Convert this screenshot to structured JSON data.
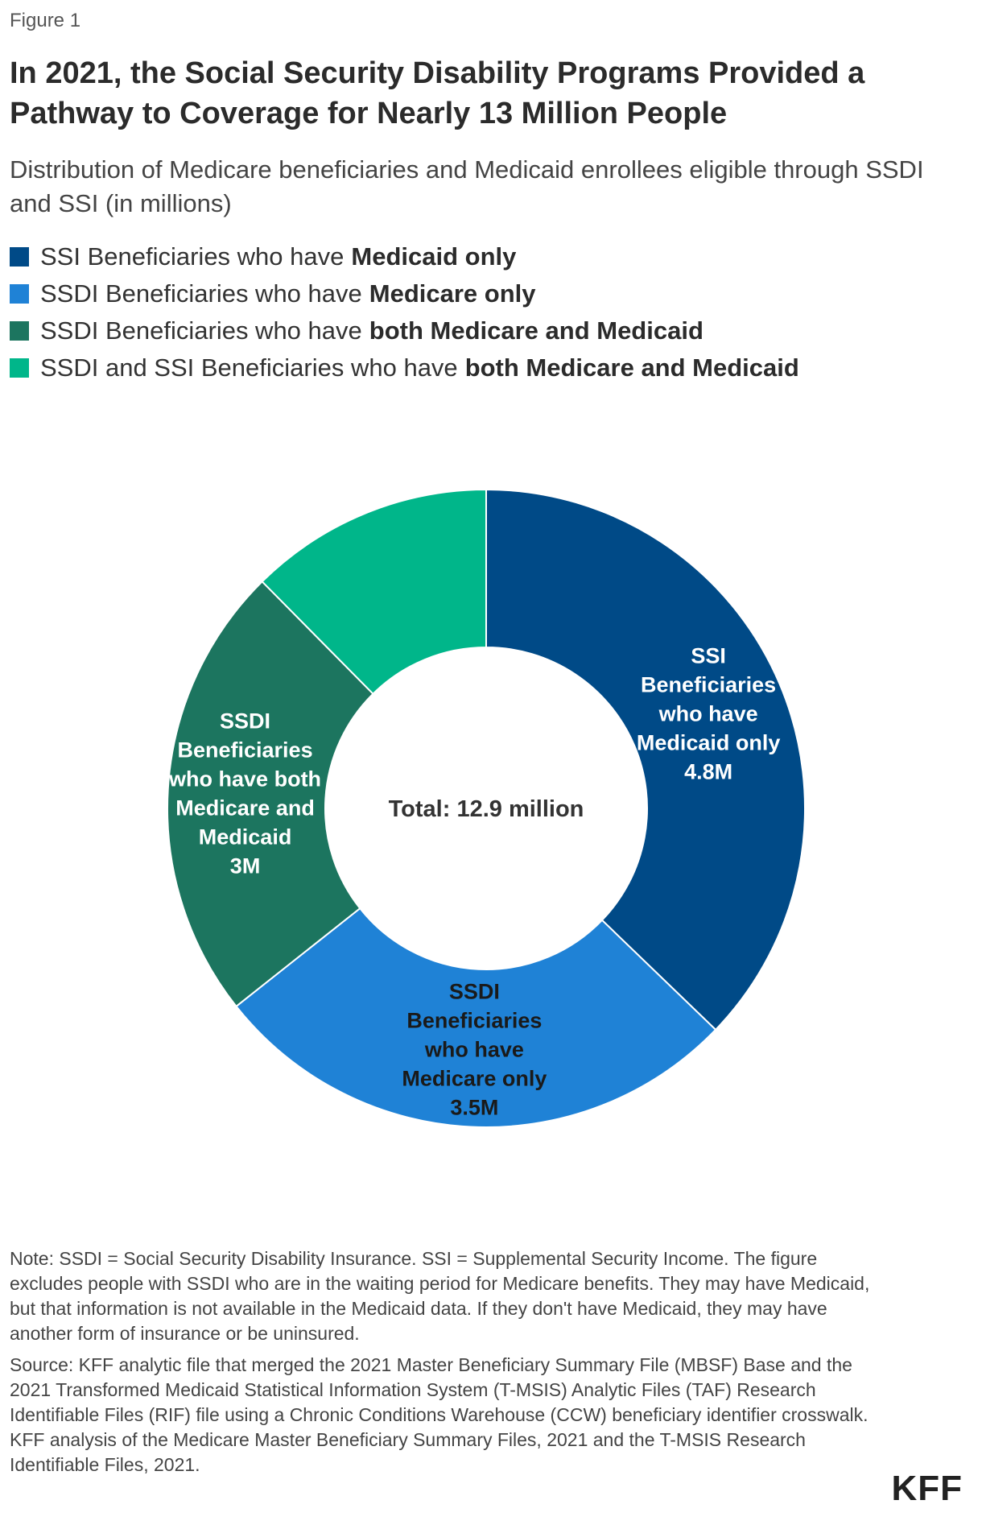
{
  "figure_label": "Figure 1",
  "title": "In 2021, the Social Security Disability Programs Provided a Pathway to Coverage for Nearly 13 Million People",
  "subtitle": "Distribution of Medicare beneficiaries and Medicaid enrollees eligible through SSDI and SSI (in millions)",
  "legend": [
    {
      "prefix": "SSI Beneficiaries who have",
      "bold": "Medicaid only",
      "color": "#004a87"
    },
    {
      "prefix": "SSDI Beneficiaries who have",
      "bold": "Medicare only",
      "color": "#1f82d6"
    },
    {
      "prefix": "SSDI Beneficiaries who have",
      "bold": "both Medicare and Medicaid",
      "color": "#1c755f"
    },
    {
      "prefix": "SSDI and SSI Beneficiaries who have",
      "bold": "both Medicare and Medicaid",
      "color": "#00b68a"
    }
  ],
  "chart_data": {
    "type": "pie",
    "style": "donut",
    "center_label": "Total: 12.9 million",
    "slices": [
      {
        "category": "SSI Beneficiaries who have Medicaid only",
        "value": 4.8,
        "label_lines": [
          "SSI",
          "Beneficiaries",
          "who have",
          "Medicaid only",
          "4.8M"
        ],
        "color": "#004a87",
        "label_color": "#ffffff"
      },
      {
        "category": "SSDI Beneficiaries who have Medicare only",
        "value": 3.5,
        "label_lines": [
          "SSDI",
          "Beneficiaries",
          "who have",
          "Medicare only",
          "3.5M"
        ],
        "color": "#1f82d6",
        "label_color": "#1a1a1a"
      },
      {
        "category": "SSDI Beneficiaries who have both Medicare and Medicaid",
        "value": 3.0,
        "label_lines": [
          "SSDI",
          "Beneficiaries",
          "who have both",
          "Medicare and",
          "Medicaid",
          "3M"
        ],
        "color": "#1c755f",
        "label_color": "#ffffff"
      },
      {
        "category": "SSDI and SSI Beneficiaries who have both Medicare and Medicaid",
        "value": 1.6,
        "label_lines": [],
        "color": "#00b68a",
        "label_color": "#ffffff"
      }
    ]
  },
  "notes": {
    "note": "Note: SSDI = Social Security Disability Insurance. SSI = Supplemental Security Income. The figure excludes people with SSDI who are in the waiting period for Medicare benefits. They may have Medicaid, but that information is not available in the Medicaid data. If they don't have Medicaid, they may have another form of insurance or be uninsured.",
    "source": "Source: KFF analytic file that merged the 2021 Master Beneficiary Summary File (MBSF) Base and the 2021 Transformed Medicaid Statistical Information System (T-MSIS) Analytic Files (TAF) Research Identifiable Files (RIF) file using a Chronic Conditions Warehouse (CCW) beneficiary identifier crosswalk. KFF analysis of the Medicare Master Beneficiary Summary Files, 2021 and the T-MSIS Research Identifiable Files, 2021."
  },
  "logo": "KFF"
}
